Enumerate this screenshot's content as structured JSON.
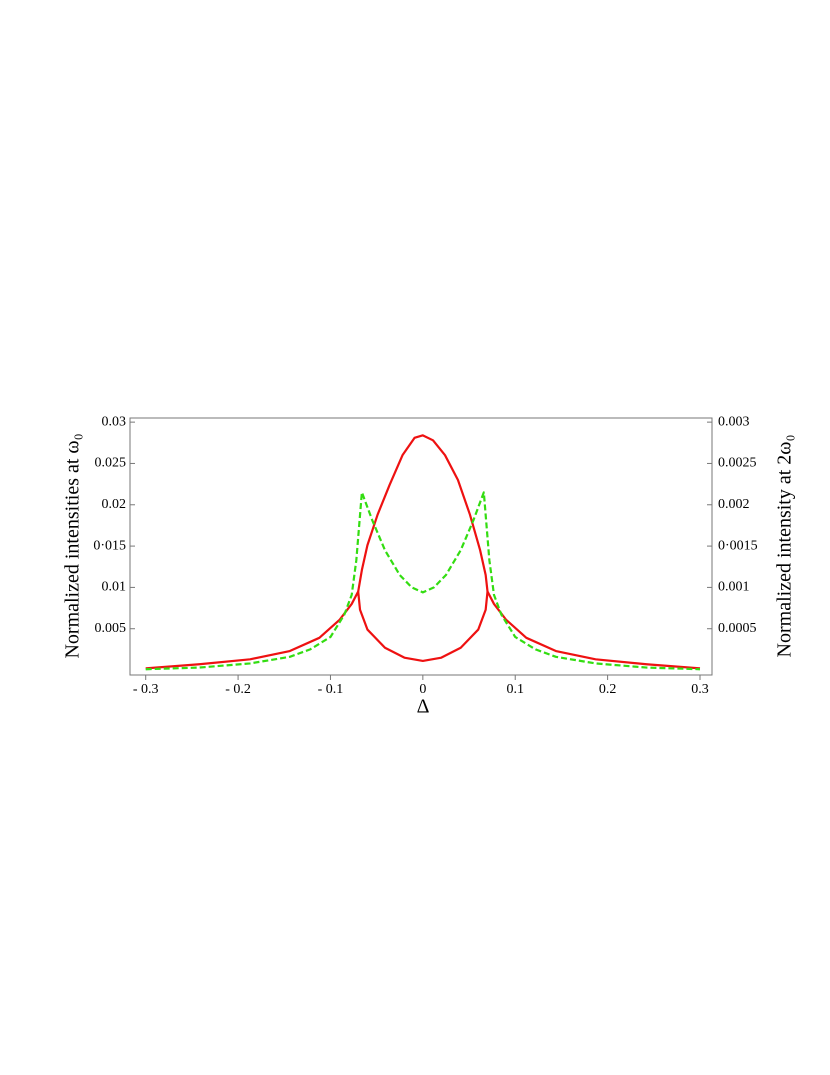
{
  "chart_data": {
    "type": "line",
    "xlabel": "Δ",
    "ylabel": "Normalized intensities at ω₀",
    "y2label": "Normalized intensity at 2ω₀",
    "xlim": [
      -0.317,
      0.313
    ],
    "xticks": [
      {
        "value": -0.3,
        "label": "- 0.3"
      },
      {
        "value": -0.2,
        "label": "- 0.2"
      },
      {
        "value": -0.1,
        "label": "- 0.1"
      },
      0,
      0.1,
      0.2,
      0.3
    ],
    "ylim": [
      -0.0006,
      0.0305
    ],
    "yticks": [
      0.005,
      0.01,
      {
        "value": 0.015,
        "label": "0·015"
      },
      0.02,
      0.025,
      0.03
    ],
    "y2lim": [
      -6e-05,
      0.00305
    ],
    "y2ticks": [
      0.0005,
      0.001,
      {
        "value": 0.0015,
        "label": "0·0015"
      },
      0.002,
      0.0025,
      0.003
    ],
    "series": [
      {
        "color": "#ee1111",
        "dash": false,
        "x": [
          -0.3,
          -0.242,
          -0.187,
          -0.144,
          -0.112,
          -0.09,
          -0.077,
          -0.07,
          -0.066,
          -0.06,
          -0.049,
          -0.036,
          -0.022,
          -0.009,
          0,
          0.011,
          0.024,
          0.038,
          0.051,
          0.062,
          0.068,
          0.07,
          0.077,
          0.09,
          0.112,
          0.144,
          0.187,
          0.242,
          0.3
        ],
        "values": [
          0.0002,
          0.0007,
          0.0013,
          0.0023,
          0.0039,
          0.0061,
          0.008,
          0.0095,
          0.0121,
          0.0151,
          0.0188,
          0.0224,
          0.026,
          0.0281,
          0.0284,
          0.0278,
          0.026,
          0.023,
          0.0188,
          0.0145,
          0.0115,
          0.0095,
          0.008,
          0.0061,
          0.0039,
          0.0023,
          0.0013,
          0.0007,
          0.0002
        ]
      },
      {
        "color": "#ee1111",
        "dash": false,
        "x": [
          -0.07,
          -0.068,
          -0.06,
          -0.041,
          -0.02,
          0,
          0.02,
          0.041,
          0.06,
          0.068,
          0.07
        ],
        "values": [
          0.0095,
          0.0073,
          0.0049,
          0.0027,
          0.0015,
          0.0011,
          0.0015,
          0.0027,
          0.0049,
          0.0073,
          0.0095
        ]
      },
      {
        "color": "#33dd11",
        "dash": true,
        "axis": "y2",
        "x": [
          -0.3,
          -0.242,
          -0.187,
          -0.144,
          -0.122,
          -0.1,
          -0.085,
          -0.077,
          -0.072,
          -0.066,
          -0.055,
          -0.041,
          -0.025,
          -0.012,
          0,
          0.012,
          0.025,
          0.041,
          0.055,
          0.066,
          0.072,
          0.077,
          0.085,
          0.1,
          0.122,
          0.144,
          0.187,
          0.242,
          0.3
        ],
        "values": [
          1e-05,
          3e-05,
          8e-05,
          0.00016,
          0.00025,
          0.0004,
          0.00067,
          0.00091,
          0.00133,
          0.00215,
          0.00182,
          0.00145,
          0.00115,
          0.001,
          0.00094,
          0.001,
          0.00115,
          0.00145,
          0.00182,
          0.00215,
          0.00133,
          0.00091,
          0.00067,
          0.0004,
          0.00025,
          0.00016,
          8e-05,
          3e-05,
          1e-05
        ]
      }
    ]
  }
}
